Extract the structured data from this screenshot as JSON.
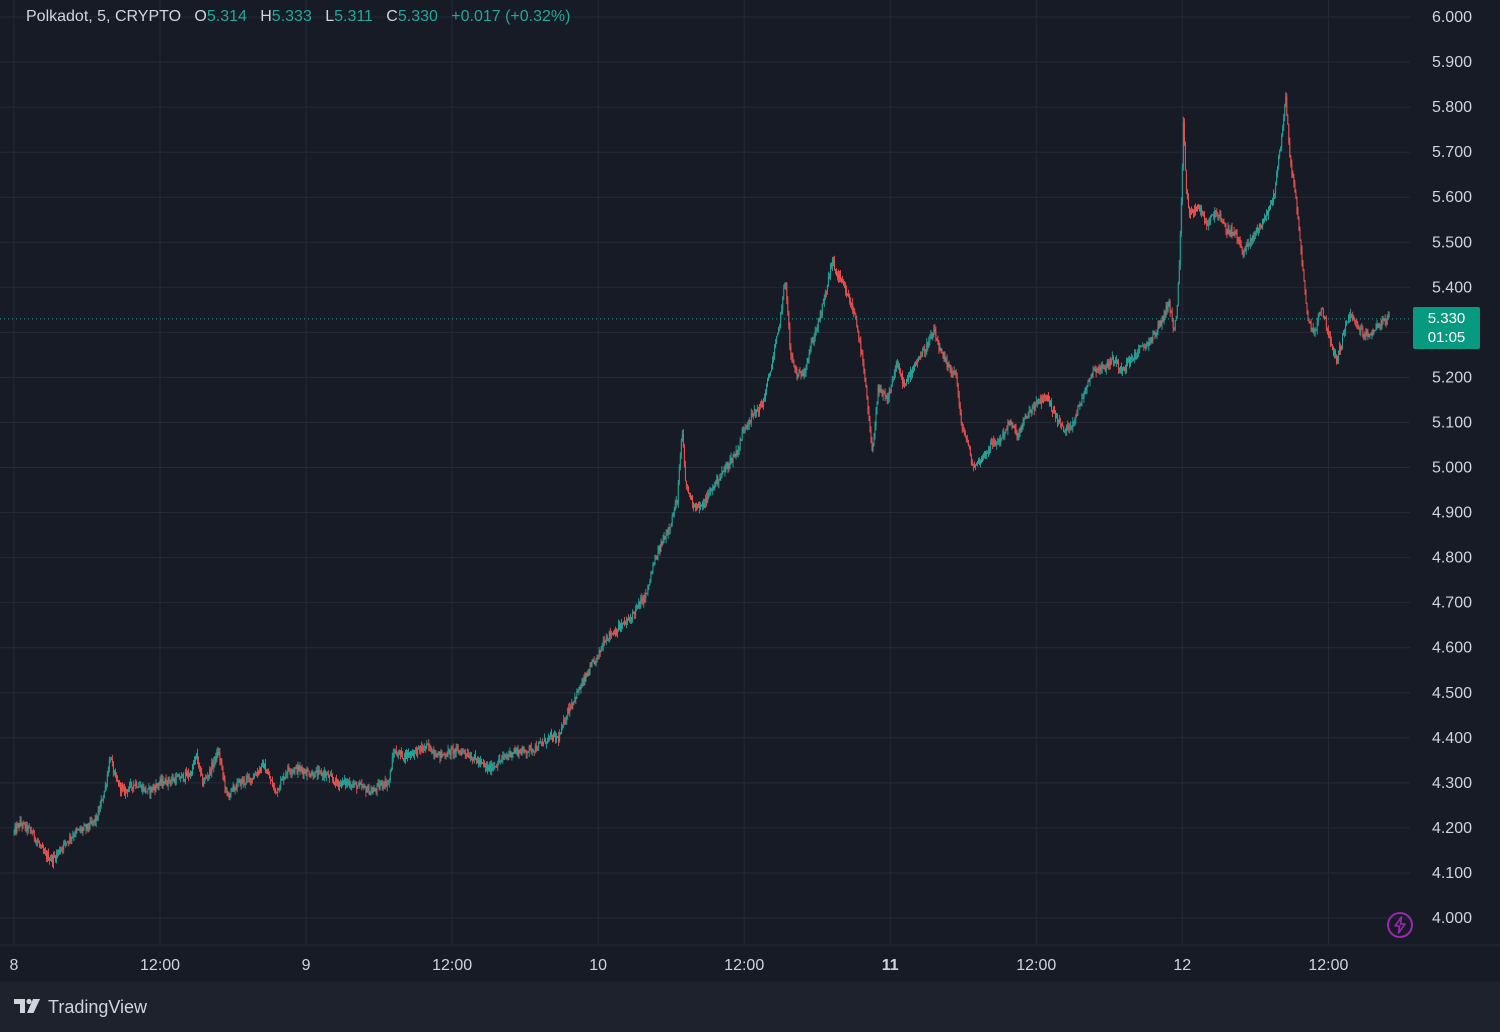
{
  "legend": {
    "symbol": "Polkadot, 5, CRYPTO",
    "o_label": "O",
    "o_value": "5.314",
    "h_label": "H",
    "h_value": "5.333",
    "l_label": "L",
    "l_value": "5.311",
    "c_label": "C",
    "c_value": "5.330",
    "change": "+0.017 (+0.32%)"
  },
  "price_tag": {
    "price": "5.330",
    "countdown": "01:05"
  },
  "footer": {
    "brand": "TradingView"
  },
  "colors": {
    "background": "#171b26",
    "grid": "#262a36",
    "up": "#26a69a",
    "down": "#ef5350",
    "axis_text": "#d1d4dc",
    "price_tag": "#089981",
    "bolt": "#9c27b0"
  },
  "icons": {
    "brand_logo": "tradingview-logo-icon",
    "bolt": "lightning-bolt-icon"
  },
  "chart_data": {
    "type": "candlestick",
    "interval": "5 minutes",
    "y_ticks": [
      "6.000",
      "5.900",
      "5.800",
      "5.700",
      "5.600",
      "5.500",
      "5.400",
      "5.300",
      "5.200",
      "5.100",
      "5.000",
      "4.900",
      "4.800",
      "4.700",
      "4.600",
      "4.500",
      "4.400",
      "4.300",
      "4.200",
      "4.100",
      "4.000"
    ],
    "ylim": [
      4.0,
      6.0
    ],
    "x_ticks": [
      {
        "label": "8",
        "t": 0,
        "bold": false
      },
      {
        "label": "12:00",
        "t": 12,
        "bold": false
      },
      {
        "label": "9",
        "t": 24,
        "bold": false
      },
      {
        "label": "12:00",
        "t": 36,
        "bold": false
      },
      {
        "label": "10",
        "t": 48,
        "bold": false
      },
      {
        "label": "12:00",
        "t": 60,
        "bold": false
      },
      {
        "label": "11",
        "t": 72,
        "bold": true
      },
      {
        "label": "12:00",
        "t": 84,
        "bold": false
      },
      {
        "label": "12",
        "t": 96,
        "bold": false
      },
      {
        "label": "12:00",
        "t": 108,
        "bold": false
      }
    ],
    "x_range_hours": [
      0,
      114.8
    ],
    "last_price": 5.33,
    "price_path": [
      [
        0.0,
        4.19
      ],
      [
        0.5,
        4.21
      ],
      [
        1.5,
        4.19
      ],
      [
        2.5,
        4.14
      ],
      [
        3.2,
        4.13
      ],
      [
        4.0,
        4.16
      ],
      [
        5.0,
        4.19
      ],
      [
        6.0,
        4.2
      ],
      [
        6.8,
        4.22
      ],
      [
        7.5,
        4.29
      ],
      [
        7.9,
        4.36
      ],
      [
        8.3,
        4.31
      ],
      [
        9.0,
        4.28
      ],
      [
        10.0,
        4.3
      ],
      [
        11.0,
        4.28
      ],
      [
        12.0,
        4.3
      ],
      [
        13.5,
        4.31
      ],
      [
        14.5,
        4.32
      ],
      [
        15.0,
        4.36
      ],
      [
        15.5,
        4.3
      ],
      [
        16.0,
        4.32
      ],
      [
        16.8,
        4.37
      ],
      [
        17.5,
        4.27
      ],
      [
        18.5,
        4.3
      ],
      [
        19.5,
        4.31
      ],
      [
        20.5,
        4.34
      ],
      [
        21.5,
        4.28
      ],
      [
        22.5,
        4.33
      ],
      [
        23.5,
        4.33
      ],
      [
        24.5,
        4.32
      ],
      [
        25.5,
        4.32
      ],
      [
        26.5,
        4.3
      ],
      [
        27.5,
        4.3
      ],
      [
        28.5,
        4.29
      ],
      [
        29.5,
        4.28
      ],
      [
        30.3,
        4.3
      ],
      [
        30.8,
        4.3
      ],
      [
        31.2,
        4.37
      ],
      [
        32.0,
        4.36
      ],
      [
        33.0,
        4.37
      ],
      [
        34.0,
        4.38
      ],
      [
        35.0,
        4.36
      ],
      [
        36.0,
        4.37
      ],
      [
        37.0,
        4.37
      ],
      [
        38.0,
        4.35
      ],
      [
        39.0,
        4.33
      ],
      [
        40.0,
        4.35
      ],
      [
        41.0,
        4.37
      ],
      [
        42.0,
        4.37
      ],
      [
        43.0,
        4.38
      ],
      [
        44.0,
        4.4
      ],
      [
        44.8,
        4.4
      ],
      [
        45.5,
        4.46
      ],
      [
        46.5,
        4.51
      ],
      [
        47.5,
        4.56
      ],
      [
        48.0,
        4.58
      ],
      [
        48.5,
        4.62
      ],
      [
        49.5,
        4.64
      ],
      [
        50.5,
        4.66
      ],
      [
        51.5,
        4.7
      ],
      [
        52.0,
        4.72
      ],
      [
        52.5,
        4.78
      ],
      [
        53.2,
        4.83
      ],
      [
        54.0,
        4.88
      ],
      [
        54.5,
        4.93
      ],
      [
        54.9,
        5.08
      ],
      [
        55.2,
        4.96
      ],
      [
        55.8,
        4.92
      ],
      [
        56.5,
        4.91
      ],
      [
        57.5,
        4.96
      ],
      [
        58.5,
        5.0
      ],
      [
        59.5,
        5.04
      ],
      [
        60.0,
        5.09
      ],
      [
        60.8,
        5.12
      ],
      [
        61.5,
        5.14
      ],
      [
        62.2,
        5.22
      ],
      [
        62.8,
        5.3
      ],
      [
        63.4,
        5.42
      ],
      [
        63.8,
        5.25
      ],
      [
        64.4,
        5.2
      ],
      [
        65.0,
        5.22
      ],
      [
        65.6,
        5.28
      ],
      [
        66.3,
        5.34
      ],
      [
        66.8,
        5.4
      ],
      [
        67.2,
        5.46
      ],
      [
        67.6,
        5.43
      ],
      [
        68.2,
        5.4
      ],
      [
        68.8,
        5.36
      ],
      [
        69.2,
        5.33
      ],
      [
        69.8,
        5.22
      ],
      [
        70.2,
        5.12
      ],
      [
        70.5,
        5.03
      ],
      [
        71.0,
        5.17
      ],
      [
        71.8,
        5.15
      ],
      [
        72.5,
        5.23
      ],
      [
        73.2,
        5.18
      ],
      [
        74.0,
        5.23
      ],
      [
        74.8,
        5.26
      ],
      [
        75.6,
        5.3
      ],
      [
        76.2,
        5.25
      ],
      [
        76.8,
        5.22
      ],
      [
        77.4,
        5.21
      ],
      [
        77.8,
        5.1
      ],
      [
        78.3,
        5.06
      ],
      [
        78.8,
        5.0
      ],
      [
        79.5,
        5.02
      ],
      [
        80.3,
        5.05
      ],
      [
        81.0,
        5.06
      ],
      [
        81.8,
        5.1
      ],
      [
        82.5,
        5.07
      ],
      [
        83.3,
        5.12
      ],
      [
        84.0,
        5.14
      ],
      [
        84.8,
        5.16
      ],
      [
        85.5,
        5.12
      ],
      [
        86.3,
        5.08
      ],
      [
        87.0,
        5.1
      ],
      [
        87.6,
        5.14
      ],
      [
        88.2,
        5.19
      ],
      [
        88.8,
        5.22
      ],
      [
        89.5,
        5.22
      ],
      [
        90.3,
        5.24
      ],
      [
        91.0,
        5.22
      ],
      [
        91.8,
        5.24
      ],
      [
        92.5,
        5.26
      ],
      [
        93.3,
        5.28
      ],
      [
        93.8,
        5.3
      ],
      [
        94.4,
        5.33
      ],
      [
        94.9,
        5.37
      ],
      [
        95.3,
        5.3
      ],
      [
        95.6,
        5.36
      ],
      [
        95.8,
        5.48
      ],
      [
        96.0,
        5.66
      ],
      [
        96.1,
        5.78
      ],
      [
        96.3,
        5.62
      ],
      [
        96.6,
        5.56
      ],
      [
        97.3,
        5.58
      ],
      [
        98.0,
        5.54
      ],
      [
        98.8,
        5.57
      ],
      [
        99.5,
        5.53
      ],
      [
        100.3,
        5.52
      ],
      [
        101.0,
        5.48
      ],
      [
        101.6,
        5.5
      ],
      [
        102.2,
        5.53
      ],
      [
        102.9,
        5.56
      ],
      [
        103.5,
        5.6
      ],
      [
        104.0,
        5.7
      ],
      [
        104.5,
        5.82
      ],
      [
        104.8,
        5.7
      ],
      [
        105.3,
        5.6
      ],
      [
        105.7,
        5.5
      ],
      [
        106.1,
        5.38
      ],
      [
        106.4,
        5.32
      ],
      [
        106.9,
        5.3
      ],
      [
        107.4,
        5.36
      ],
      [
        107.9,
        5.31
      ],
      [
        108.3,
        5.26
      ],
      [
        108.7,
        5.24
      ],
      [
        109.1,
        5.28
      ],
      [
        109.7,
        5.34
      ],
      [
        110.2,
        5.32
      ],
      [
        110.8,
        5.3
      ],
      [
        111.3,
        5.29
      ],
      [
        111.8,
        5.31
      ],
      [
        112.3,
        5.32
      ],
      [
        113.0,
        5.33
      ]
    ]
  }
}
